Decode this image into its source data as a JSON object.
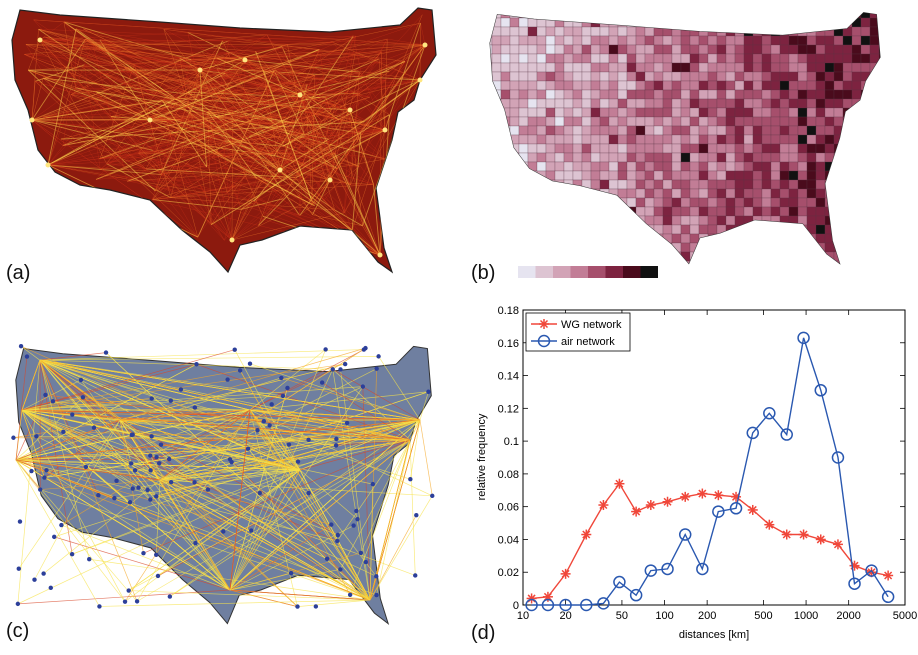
{
  "panels": {
    "a": {
      "label": "(a)"
    },
    "b": {
      "label": "(b)",
      "colorbar": [
        "#e6e4f0",
        "#ddc4d2",
        "#d2a3b6",
        "#c27d96",
        "#a64f6c",
        "#7d2340",
        "#4a0b1c",
        "#111111"
      ]
    },
    "c": {
      "label": "(c)"
    },
    "d": {
      "label": "(d)"
    }
  },
  "chart_data": {
    "type": "line",
    "x_scale": "log",
    "xlabel": "distances [km]",
    "ylabel": "relative frequency",
    "xlim": [
      10,
      5000
    ],
    "ylim": [
      0,
      0.18
    ],
    "xticks": [
      10,
      20,
      50,
      100,
      200,
      500,
      1000,
      2000,
      5000
    ],
    "xtick_labels": [
      "10",
      "20",
      "50",
      "100",
      "200",
      "500",
      "1000",
      "2000",
      "5000"
    ],
    "yticks": [
      0,
      0.02,
      0.04,
      0.06,
      0.08,
      0.1,
      0.12,
      0.14,
      0.16,
      0.18
    ],
    "ytick_labels": [
      "0",
      "0.02",
      "0.04",
      "0.06",
      "0.08",
      "0.1",
      "0.12",
      "0.14",
      "0.16",
      "0.18"
    ],
    "legend_position": "top-left",
    "series": [
      {
        "name": "WG network",
        "color": "#f0473a",
        "marker": "asterisk",
        "x": [
          11.5,
          15,
          20,
          28,
          37,
          48,
          63,
          80,
          105,
          140,
          185,
          240,
          320,
          420,
          550,
          730,
          960,
          1270,
          1680,
          2200,
          2900,
          3800
        ],
        "y": [
          0.004,
          0.005,
          0.019,
          0.043,
          0.061,
          0.074,
          0.057,
          0.061,
          0.063,
          0.066,
          0.068,
          0.067,
          0.066,
          0.058,
          0.049,
          0.043,
          0.043,
          0.04,
          0.037,
          0.024,
          0.02,
          0.018
        ]
      },
      {
        "name": "air network",
        "color": "#2a58b0",
        "marker": "circle",
        "x": [
          11.5,
          15,
          20,
          28,
          37,
          48,
          63,
          80,
          105,
          140,
          185,
          240,
          320,
          420,
          550,
          730,
          960,
          1270,
          1680,
          2200,
          2900,
          3800
        ],
        "y": [
          0.0,
          0.0,
          0.0,
          0.0,
          0.001,
          0.014,
          0.006,
          0.021,
          0.022,
          0.043,
          0.022,
          0.057,
          0.059,
          0.105,
          0.117,
          0.104,
          0.163,
          0.131,
          0.09,
          0.013,
          0.021,
          0.005
        ]
      }
    ]
  }
}
